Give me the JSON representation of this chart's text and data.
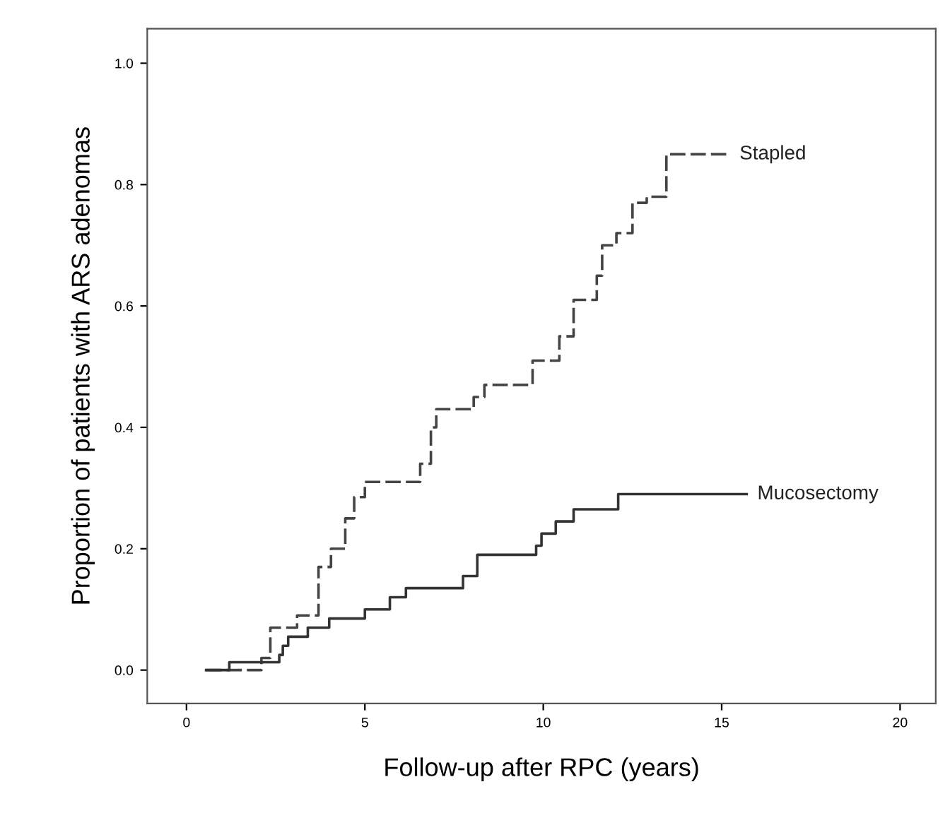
{
  "chart_data": {
    "type": "step",
    "xlabel": "Follow-up after RPC (years)",
    "ylabel": "Proportion of patients with ARS adenomas",
    "xlim": [
      -1.1,
      21.0
    ],
    "ylim": [
      -0.055,
      1.057
    ],
    "xticks": [
      0,
      5,
      10,
      15,
      20
    ],
    "yticks": [
      {
        "value": 0,
        "label": "0.0"
      },
      {
        "value": 0.2,
        "label": "0.2"
      },
      {
        "value": 0.4,
        "label": "0.4"
      },
      {
        "value": 0.6,
        "label": "0.6"
      },
      {
        "value": 0.8,
        "label": "0.8"
      },
      {
        "value": 1.0,
        "label": "1.0"
      }
    ],
    "grid": false,
    "legend": false,
    "marker": "none",
    "series": [
      {
        "name": "Stapled",
        "color": "#444444",
        "line_style": "dashed",
        "x": [
          0.55,
          2.1,
          2.35,
          3.1,
          3.7,
          4.05,
          4.45,
          4.7,
          5.0,
          6.55,
          6.85,
          7.0,
          8.05,
          8.35,
          9.7,
          10.45,
          10.85,
          11.5,
          11.65,
          12.05,
          12.5,
          12.9,
          13.45,
          15.2
        ],
        "values": [
          0,
          0.02,
          0.07,
          0.09,
          0.17,
          0.2,
          0.25,
          0.285,
          0.31,
          0.34,
          0.4,
          0.43,
          0.45,
          0.47,
          0.51,
          0.55,
          0.61,
          0.65,
          0.7,
          0.72,
          0.77,
          0.78,
          0.85,
          0.85
        ]
      },
      {
        "name": "Mucosectomy",
        "color": "#333333",
        "line_style": "solid",
        "x": [
          0.55,
          1.2,
          2.6,
          2.7,
          2.85,
          3.4,
          4.0,
          5.0,
          5.7,
          6.15,
          7.75,
          8.15,
          9.8,
          9.95,
          10.35,
          10.85,
          12.1,
          15.7
        ],
        "values": [
          0,
          0.013,
          0.025,
          0.04,
          0.055,
          0.07,
          0.085,
          0.1,
          0.12,
          0.135,
          0.155,
          0.19,
          0.205,
          0.225,
          0.245,
          0.265,
          0.29,
          0.29
        ]
      }
    ]
  }
}
